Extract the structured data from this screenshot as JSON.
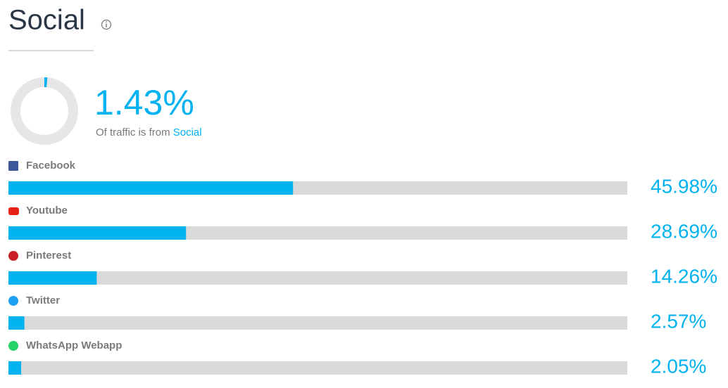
{
  "chart_data": {
    "type": "bar",
    "orientation": "horizontal",
    "title": "Social",
    "summary": {
      "value": 1.43,
      "value_label": "1.43%",
      "text": "Of traffic is from",
      "highlight": "Social"
    },
    "categories": [
      "Facebook",
      "Youtube",
      "Pinterest",
      "Twitter",
      "WhatsApp Webapp"
    ],
    "values": [
      45.98,
      28.69,
      14.26,
      2.57,
      2.05
    ],
    "value_labels": [
      "45.98%",
      "28.69%",
      "14.26%",
      "2.57%",
      "2.05%"
    ],
    "color": "#00b2f0",
    "track_color": "#d9d9d9",
    "xlim": [
      0,
      100
    ]
  }
}
